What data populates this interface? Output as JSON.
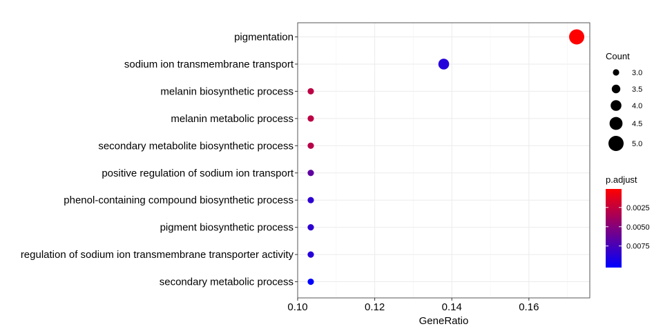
{
  "chart_data": {
    "type": "scatter",
    "title": "",
    "xlabel": "GeneRatio",
    "ylabel": "",
    "xlim": [
      0.1,
      0.1758
    ],
    "xticks": [
      0.1,
      0.12,
      0.14,
      0.16
    ],
    "xtick_labels": [
      "0.10",
      "0.12",
      "0.14",
      "0.16"
    ],
    "grid": true,
    "legend_position": "right",
    "categories": [
      "pigmentation",
      "sodium ion transmembrane transport",
      "melanin biosynthetic process",
      "melanin metabolic process",
      "secondary metabolite biosynthetic process",
      "positive regulation of sodium ion transport",
      "phenol-containing compound biosynthetic process",
      "pigment biosynthetic process",
      "regulation of sodium ion transmembrane transporter activity",
      "secondary metabolic process"
    ],
    "points": [
      {
        "term": "pigmentation",
        "gene_ratio": 0.1724,
        "count": 5,
        "p_adjust": 0.0001
      },
      {
        "term": "sodium ion transmembrane transport",
        "gene_ratio": 0.1379,
        "count": 4,
        "p_adjust": 0.0088
      },
      {
        "term": "melanin biosynthetic process",
        "gene_ratio": 0.1034,
        "count": 3,
        "p_adjust": 0.0028
      },
      {
        "term": "melanin metabolic process",
        "gene_ratio": 0.1034,
        "count": 3,
        "p_adjust": 0.0028
      },
      {
        "term": "secondary metabolite biosynthetic process",
        "gene_ratio": 0.1034,
        "count": 3,
        "p_adjust": 0.003
      },
      {
        "term": "positive regulation of sodium ion transport",
        "gene_ratio": 0.1034,
        "count": 3,
        "p_adjust": 0.0065
      },
      {
        "term": "phenol-containing compound biosynthetic process",
        "gene_ratio": 0.1034,
        "count": 3,
        "p_adjust": 0.0085
      },
      {
        "term": "pigment biosynthetic process",
        "gene_ratio": 0.1034,
        "count": 3,
        "p_adjust": 0.0085
      },
      {
        "term": "regulation of sodium ion transmembrane transporter activity",
        "gene_ratio": 0.1034,
        "count": 3,
        "p_adjust": 0.0088
      },
      {
        "term": "secondary metabolic process",
        "gene_ratio": 0.1034,
        "count": 3,
        "p_adjust": 0.0103
      }
    ],
    "size_legend": {
      "title": "Count",
      "values": [
        3.0,
        3.5,
        4.0,
        4.5,
        5.0
      ],
      "labels": [
        "3.0",
        "3.5",
        "4.0",
        "4.5",
        "5.0"
      ]
    },
    "color_legend": {
      "title": "p.adjust",
      "min": 0.0001,
      "max": 0.0103,
      "ticks": [
        0.0025,
        0.005,
        0.0075
      ],
      "labels": [
        "0.0025",
        "0.0050",
        "0.0075"
      ],
      "low_color": "#ff0000",
      "high_color": "#0000ff"
    }
  }
}
